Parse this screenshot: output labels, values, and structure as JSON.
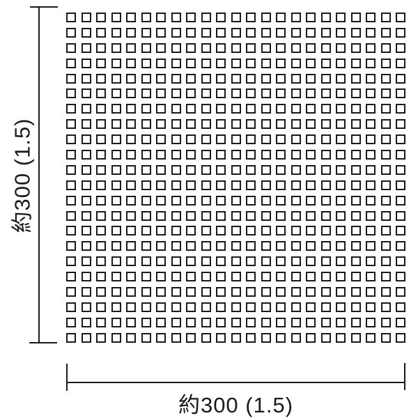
{
  "diagram": {
    "type": "tile-sheet-dimension-diagram",
    "vertical_dimension": {
      "label": "約300 (1.5)",
      "orientation": "vertical"
    },
    "horizontal_dimension": {
      "label": "約300 (1.5)",
      "orientation": "horizontal"
    },
    "grid": {
      "columns": 23,
      "rows": 22,
      "tile_shape": "square"
    },
    "colors": {
      "line": "#1a1a1a",
      "background": "#ffffff",
      "tile_fill": "#ffffff"
    }
  }
}
